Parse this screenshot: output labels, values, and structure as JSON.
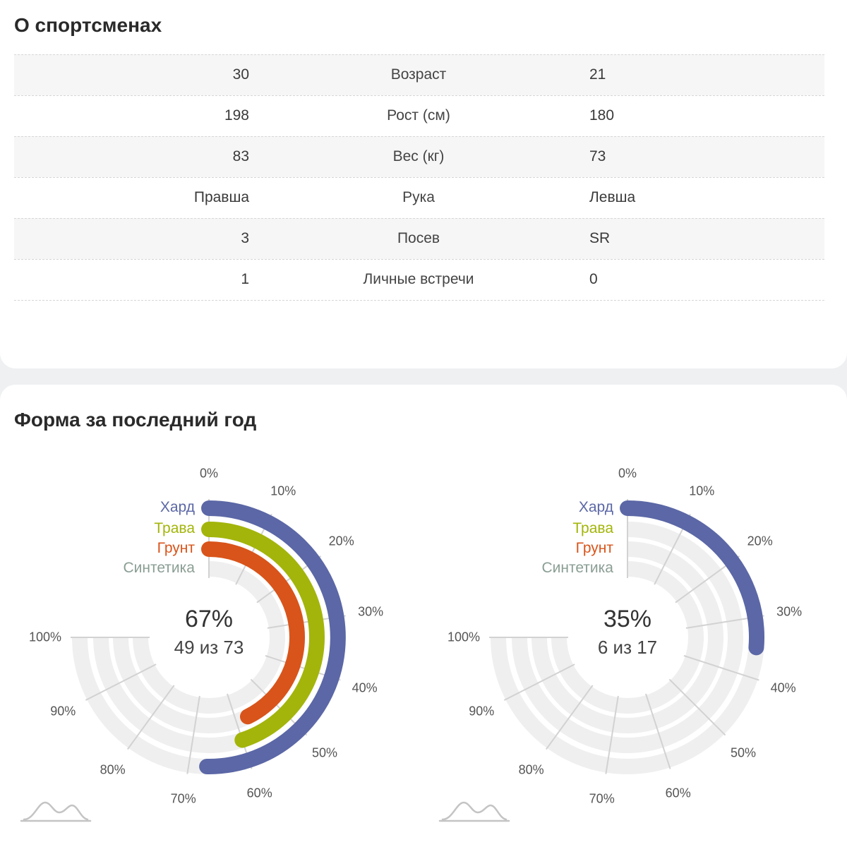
{
  "about": {
    "title": "О спортсменах",
    "rows": [
      {
        "left": "30",
        "label": "Возраст",
        "right": "21"
      },
      {
        "left": "198",
        "label": "Рост (см)",
        "right": "180"
      },
      {
        "left": "83",
        "label": "Вес (кг)",
        "right": "73"
      },
      {
        "left": "Правша",
        "label": "Рука",
        "right": "Левша"
      },
      {
        "left": "3",
        "label": "Посев",
        "right": "SR"
      },
      {
        "left": "1",
        "label": "Личные встречи",
        "right": "0"
      }
    ]
  },
  "form": {
    "title": "Форма за последний год",
    "ticks": [
      "0%",
      "10%",
      "20%",
      "30%",
      "40%",
      "50%",
      "60%",
      "70%",
      "80%",
      "90%",
      "100%"
    ],
    "legend": [
      {
        "name": "Хард",
        "color": "#5b67a6"
      },
      {
        "name": "Трава",
        "color": "#a3b50a"
      },
      {
        "name": "Грунт",
        "color": "#d9541a"
      },
      {
        "name": "Синтетика",
        "color": "#8a9e94"
      }
    ]
  },
  "chart_data": [
    {
      "type": "radial_bar",
      "title": "Форма за последний год",
      "center_value": "67%",
      "center_count": "49 из 73",
      "axis_range": [
        0,
        100
      ],
      "series": [
        {
          "name": "Хард",
          "value": 67
        },
        {
          "name": "Трава",
          "value": 60
        },
        {
          "name": "Грунт",
          "value": 57
        },
        {
          "name": "Синтетика",
          "value": 0
        }
      ]
    },
    {
      "type": "radial_bar",
      "title": "Форма за последний год",
      "center_value": "35%",
      "center_count": "6 из 17",
      "axis_range": [
        0,
        100
      ],
      "series": [
        {
          "name": "Хард",
          "value": 35
        },
        {
          "name": "Трава",
          "value": 0
        },
        {
          "name": "Грунт",
          "value": 0
        },
        {
          "name": "Синтетика",
          "value": 0
        }
      ]
    }
  ]
}
